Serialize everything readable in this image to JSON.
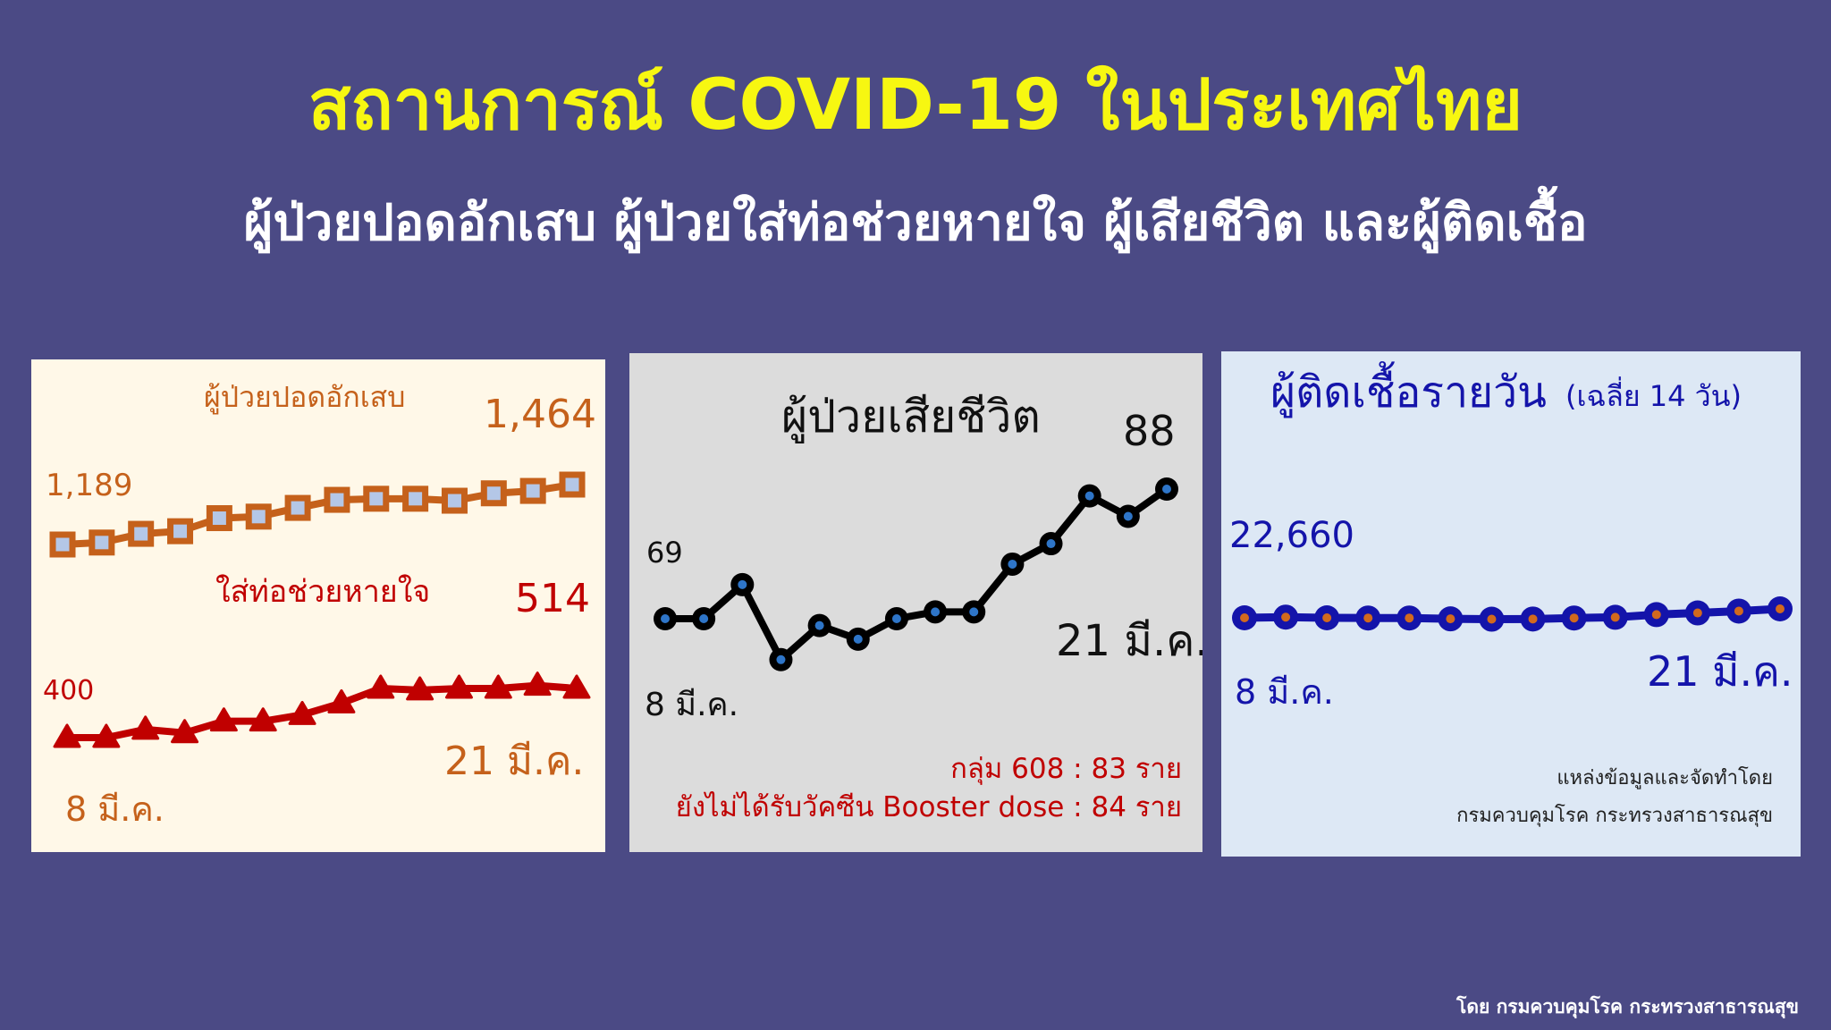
{
  "header": {
    "title": "สถานการณ์ COVID-19 ในประเทศไทย",
    "subtitle": "ผู้ป่วยปอดอักเสบ ผู้ป่วยใส่ท่อช่วยหายใจ ผู้เสียชีวิต และผู้ติดเชื้อ"
  },
  "footer": "โดย กรมควบคุมโรค กระทรวงสาธารณสุข",
  "colors": {
    "background": "#4b4a85",
    "title": "#f7f711",
    "pneumonia": "#c5611b",
    "ventilator": "#c00000",
    "deaths": "#000000",
    "infections": "#1414aa"
  },
  "chart_data": [
    {
      "type": "line",
      "title": "",
      "start_label": "8 มี.ค.",
      "end_label": "21 มี.ค.",
      "series": [
        {
          "name": "ผู้ป่วยปอดอักเสบ",
          "start_value_label": "1,189",
          "end_value_label": "1,464",
          "marker": "square",
          "values": [
            1189,
            1198,
            1238,
            1250,
            1310,
            1317,
            1357,
            1394,
            1399,
            1399,
            1390,
            1424,
            1435,
            1464
          ]
        },
        {
          "name": "ใส่ท่อช่วยหายใจ",
          "start_value_label": "400",
          "end_value_label": "514",
          "marker": "triangle",
          "values": [
            400,
            400,
            419,
            411,
            438,
            438,
            453,
            480,
            514,
            510,
            514,
            514,
            521,
            514
          ]
        }
      ]
    },
    {
      "type": "line",
      "title": "ผู้ป่วยเสียชีวิต",
      "start_label": "8 มี.ค.",
      "end_label": "21 มี.ค.",
      "start_value_label": "69",
      "end_value_label": "88",
      "values": [
        69,
        69,
        74,
        63,
        68,
        66,
        69,
        70,
        70,
        77,
        80,
        87,
        84,
        88
      ],
      "notes": [
        "กลุ่ม 608 : 83 ราย",
        "ยังไม่ได้รับวัคซีน Booster dose : 84 ราย"
      ]
    },
    {
      "type": "line",
      "title": "ผู้ติดเชื้อรายวัน",
      "title_note": "(เฉลี่ย 14 วัน)",
      "start_label": "8 มี.ค.",
      "end_label": "21 มี.ค.",
      "start_value_label": "22,660",
      "values": [
        22660,
        22700,
        22660,
        22650,
        22650,
        22600,
        22580,
        22590,
        22650,
        22690,
        22850,
        22950,
        23060,
        23190
      ],
      "source": [
        "แหล่งข้อมูลและจัดทำโดย",
        "กรมควบคุมโรค กระทรวงสาธารณสุข"
      ]
    }
  ]
}
